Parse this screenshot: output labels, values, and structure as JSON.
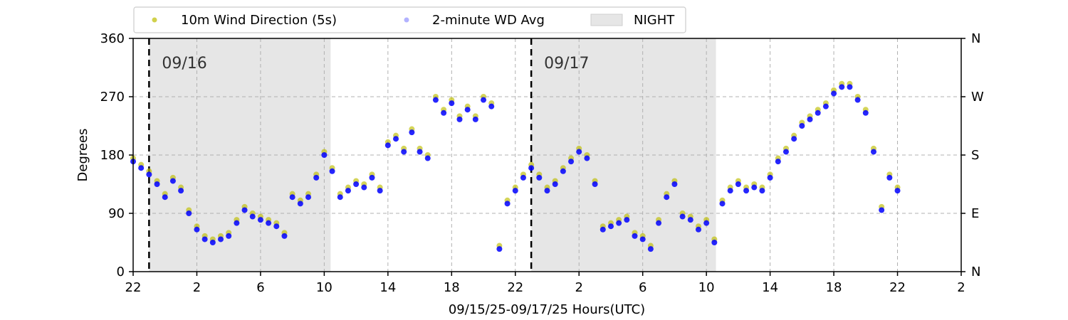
{
  "chart_data": {
    "type": "scatter",
    "title": "",
    "xlabel": "09/15/25-09/17/25  Hours(UTC)",
    "ylabel": "Degrees",
    "ylim": [
      0,
      360
    ],
    "xlim_hours": [
      22,
      74
    ],
    "x_ticks": [
      {
        "hour": 22,
        "label": "22"
      },
      {
        "hour": 26,
        "label": "2"
      },
      {
        "hour": 30,
        "label": "6"
      },
      {
        "hour": 34,
        "label": "10"
      },
      {
        "hour": 38,
        "label": "14"
      },
      {
        "hour": 42,
        "label": "18"
      },
      {
        "hour": 46,
        "label": "22"
      },
      {
        "hour": 50,
        "label": "2"
      },
      {
        "hour": 54,
        "label": "6"
      },
      {
        "hour": 58,
        "label": "10"
      },
      {
        "hour": 62,
        "label": "14"
      },
      {
        "hour": 66,
        "label": "18"
      },
      {
        "hour": 70,
        "label": "22"
      },
      {
        "hour": 74,
        "label": "2"
      }
    ],
    "y_ticks_left": [
      "0",
      "90",
      "180",
      "270",
      "360"
    ],
    "y_ticks_right": [
      "N",
      "E",
      "S",
      "W",
      "N"
    ],
    "grid": true,
    "legend": {
      "placement": "top",
      "entries": [
        "10m Wind Direction (5s)",
        "2-minute WD Avg",
        "NIGHT"
      ]
    },
    "night_periods": [
      [
        23.0,
        34.4
      ],
      [
        47.0,
        58.6
      ]
    ],
    "day_markers": [
      {
        "hour": 23.0,
        "label": "09/16"
      },
      {
        "hour": 47.0,
        "label": "09/17"
      }
    ],
    "colors": {
      "series_5s": "#bdbd00",
      "series_avg": "#0000ff",
      "night": "#e6e6e6"
    },
    "series": [
      {
        "name": "10m Wind Direction (5s)",
        "x": [
          22.0,
          22.5,
          23.0,
          23.5,
          24.0,
          24.5,
          25.0,
          25.5,
          26.0,
          26.5,
          27.0,
          27.5,
          28.0,
          28.5,
          29.0,
          29.5,
          30.0,
          30.5,
          31.0,
          31.5,
          32.0,
          32.5,
          33.0,
          33.5,
          34.0,
          34.5,
          35.0,
          35.5,
          36.0,
          36.5,
          37.0,
          37.5,
          38.0,
          38.5,
          39.0,
          39.5,
          40.0,
          40.5,
          41.0,
          41.5,
          42.0,
          42.5,
          43.0,
          43.5,
          44.0,
          44.5,
          45.0,
          45.5,
          46.0,
          46.5,
          47.0,
          47.5,
          48.0,
          48.5,
          49.0,
          49.5,
          50.0,
          50.5,
          51.0,
          51.5,
          52.0,
          52.5,
          53.0,
          53.5,
          54.0,
          54.5,
          55.0,
          55.5,
          56.0,
          56.5,
          57.0,
          57.5,
          58.0,
          58.5,
          59.0,
          59.5,
          60.0,
          60.5,
          61.0,
          61.5,
          62.0,
          62.5,
          63.0,
          63.5,
          64.0,
          64.5,
          65.0,
          65.5,
          66.0,
          66.5,
          67.0,
          67.5,
          68.0,
          68.5,
          69.0,
          69.5,
          70.0
        ],
        "y": [
          175,
          165,
          155,
          140,
          120,
          145,
          130,
          95,
          70,
          55,
          50,
          55,
          60,
          80,
          100,
          90,
          85,
          80,
          75,
          60,
          120,
          110,
          120,
          150,
          185,
          160,
          120,
          130,
          140,
          135,
          150,
          130,
          200,
          210,
          190,
          220,
          190,
          180,
          270,
          250,
          265,
          240,
          255,
          240,
          270,
          260,
          40,
          110,
          130,
          150,
          165,
          150,
          130,
          140,
          160,
          175,
          190,
          180,
          140,
          70,
          75,
          80,
          85,
          60,
          55,
          40,
          80,
          120,
          140,
          90,
          85,
          70,
          80,
          50,
          110,
          130,
          140,
          130,
          135,
          130,
          150,
          175,
          190,
          210,
          230,
          240,
          250,
          260,
          280,
          290,
          290,
          270,
          250,
          190,
          100,
          150,
          130
        ]
      },
      {
        "name": "2-minute WD Avg",
        "x": [
          22.0,
          22.5,
          23.0,
          23.5,
          24.0,
          24.5,
          25.0,
          25.5,
          26.0,
          26.5,
          27.0,
          27.5,
          28.0,
          28.5,
          29.0,
          29.5,
          30.0,
          30.5,
          31.0,
          31.5,
          32.0,
          32.5,
          33.0,
          33.5,
          34.0,
          34.5,
          35.0,
          35.5,
          36.0,
          36.5,
          37.0,
          37.5,
          38.0,
          38.5,
          39.0,
          39.5,
          40.0,
          40.5,
          41.0,
          41.5,
          42.0,
          42.5,
          43.0,
          43.5,
          44.0,
          44.5,
          45.0,
          45.5,
          46.0,
          46.5,
          47.0,
          47.5,
          48.0,
          48.5,
          49.0,
          49.5,
          50.0,
          50.5,
          51.0,
          51.5,
          52.0,
          52.5,
          53.0,
          53.5,
          54.0,
          54.5,
          55.0,
          55.5,
          56.0,
          56.5,
          57.0,
          57.5,
          58.0,
          58.5,
          59.0,
          59.5,
          60.0,
          60.5,
          61.0,
          61.5,
          62.0,
          62.5,
          63.0,
          63.5,
          64.0,
          64.5,
          65.0,
          65.5,
          66.0,
          66.5,
          67.0,
          67.5,
          68.0,
          68.5,
          69.0,
          69.5,
          70.0
        ],
        "y": [
          170,
          160,
          150,
          135,
          115,
          140,
          125,
          90,
          65,
          50,
          45,
          50,
          55,
          75,
          95,
          85,
          80,
          75,
          70,
          55,
          115,
          105,
          115,
          145,
          180,
          155,
          115,
          125,
          135,
          130,
          145,
          125,
          195,
          205,
          185,
          215,
          185,
          175,
          265,
          245,
          260,
          235,
          250,
          235,
          265,
          255,
          35,
          105,
          125,
          145,
          160,
          145,
          125,
          135,
          155,
          170,
          185,
          175,
          135,
          65,
          70,
          75,
          80,
          55,
          50,
          35,
          75,
          115,
          135,
          85,
          80,
          65,
          75,
          45,
          105,
          125,
          135,
          125,
          130,
          125,
          145,
          170,
          185,
          205,
          225,
          235,
          245,
          255,
          275,
          285,
          285,
          265,
          245,
          185,
          95,
          145,
          125
        ]
      }
    ]
  }
}
